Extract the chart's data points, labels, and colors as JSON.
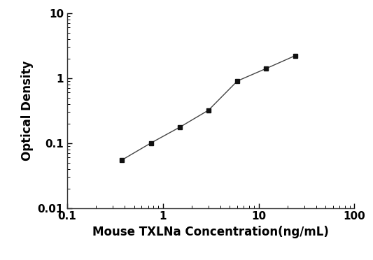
{
  "x": [
    0.375,
    0.75,
    1.5,
    3.0,
    6.0,
    12.0,
    24.0
  ],
  "y": [
    0.055,
    0.1,
    0.175,
    0.32,
    0.9,
    1.4,
    2.2
  ],
  "xlabel": "Mouse TXLNa Concentration(ng/mL)",
  "ylabel": "Optical Density",
  "xlim": [
    0.1,
    100
  ],
  "ylim": [
    0.01,
    10
  ],
  "xticks": [
    0.1,
    1,
    10,
    100
  ],
  "yticks": [
    0.01,
    0.1,
    1,
    10
  ],
  "xtick_labels": [
    "0.1",
    "1",
    "10",
    "100"
  ],
  "ytick_labels": [
    "0.01",
    "0.1",
    "1",
    "10"
  ],
  "line_color": "#444444",
  "marker_color": "#111111",
  "background_color": "#ffffff",
  "marker": "s",
  "marker_size": 5,
  "line_width": 1.0,
  "xlabel_fontsize": 12,
  "ylabel_fontsize": 12,
  "tick_fontsize": 11
}
